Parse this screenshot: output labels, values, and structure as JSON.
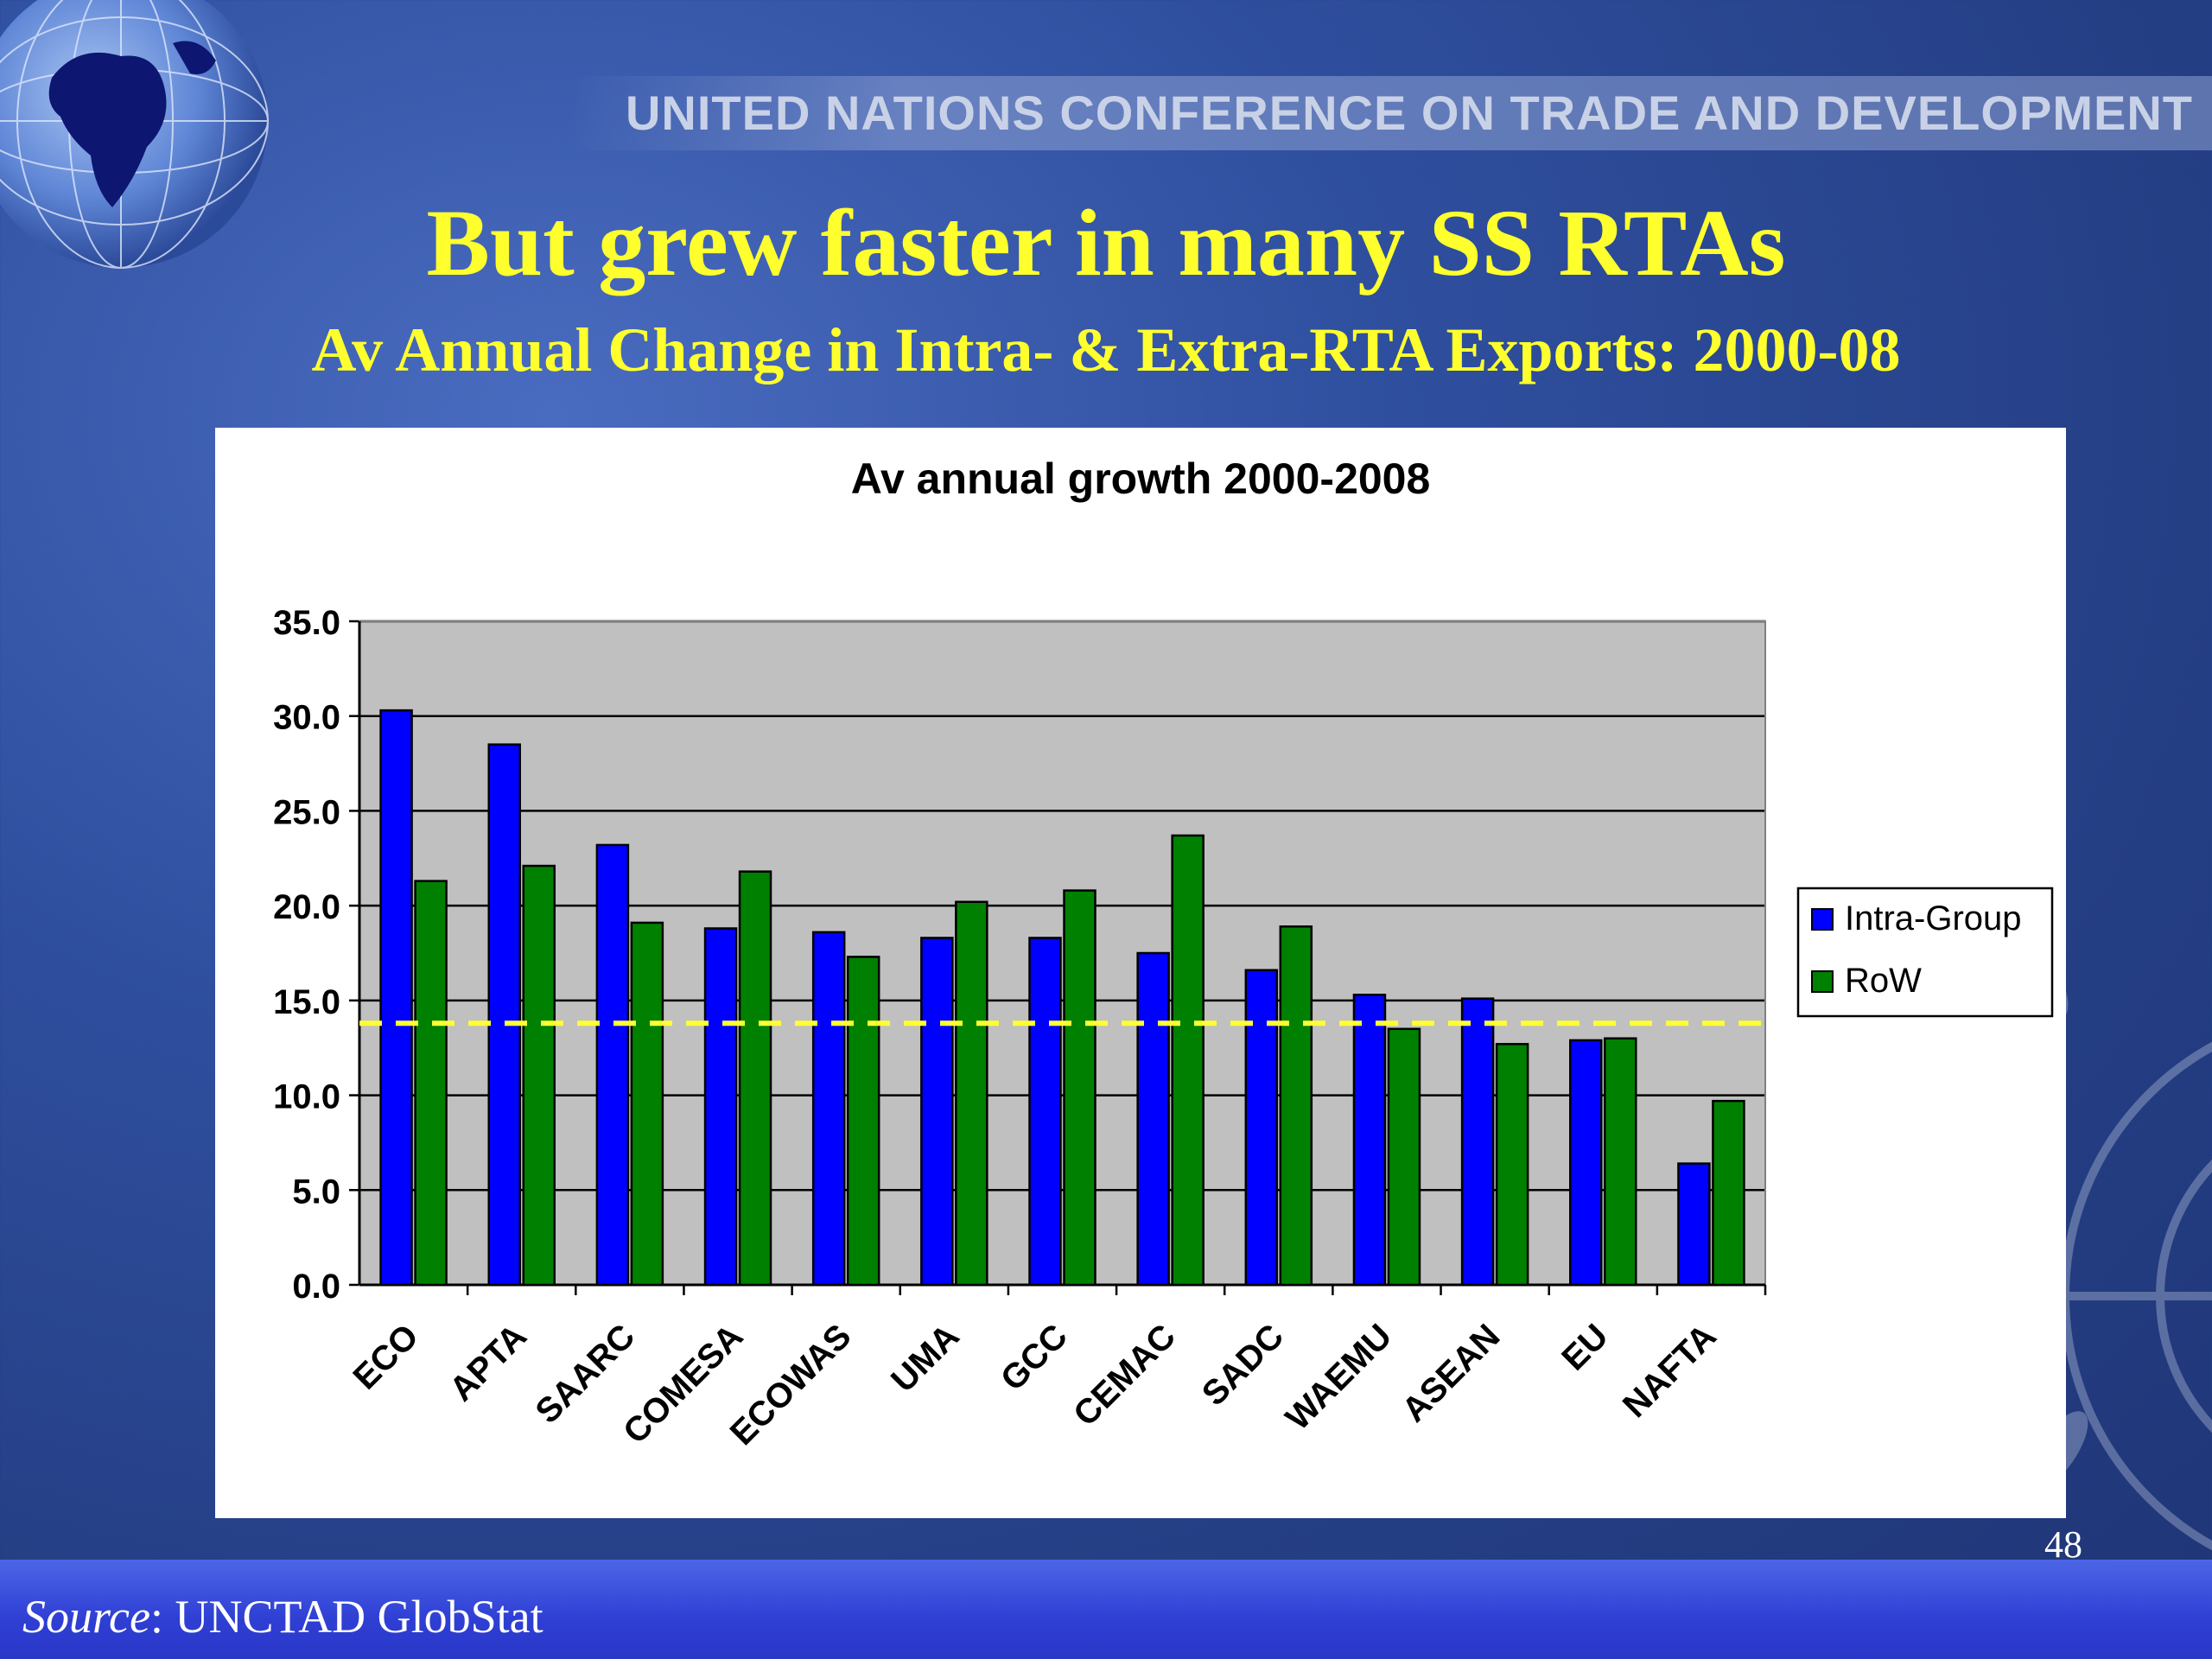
{
  "header": {
    "org_name": "UNITED NATIONS CONFERENCE ON TRADE AND DEVELOPMENT"
  },
  "slide": {
    "title": "But grew faster in many SS RTAs",
    "subtitle": "Av Annual Change in Intra- & Extra-RTA Exports: 2000-08",
    "page_number": "48"
  },
  "footer": {
    "source_label": "Source",
    "source_text": ": UNCTAD GlobStat"
  },
  "chart_data": {
    "type": "bar",
    "title": "Av annual growth 2000-2008",
    "xlabel": "",
    "ylabel": "",
    "categories": [
      "ECO",
      "APTA",
      "SAARC",
      "COMESA",
      "ECOWAS",
      "UMA",
      "GCC",
      "CEMAC",
      "SADC",
      "WAEMU",
      "ASEAN",
      "EU",
      "NAFTA"
    ],
    "series": [
      {
        "name": "Intra-Group",
        "color": "#0000ff",
        "values": [
          30.3,
          28.5,
          23.2,
          18.8,
          18.6,
          18.3,
          18.3,
          17.5,
          16.6,
          15.3,
          15.1,
          12.9,
          6.4
        ]
      },
      {
        "name": "RoW",
        "color": "#008000",
        "values": [
          21.3,
          22.1,
          19.1,
          21.8,
          17.3,
          20.2,
          20.8,
          23.7,
          18.9,
          13.5,
          12.7,
          13.0,
          9.7
        ]
      }
    ],
    "ylim": [
      0,
      35
    ],
    "yticks": [
      "0.0",
      "5.0",
      "10.0",
      "15.0",
      "20.0",
      "25.0",
      "30.0",
      "35.0"
    ],
    "grid": true,
    "legend": "right",
    "plot_background": "#c0c0c0",
    "reference_line": {
      "value": 13.8,
      "style": "dashed",
      "color": "#ffff33"
    }
  }
}
